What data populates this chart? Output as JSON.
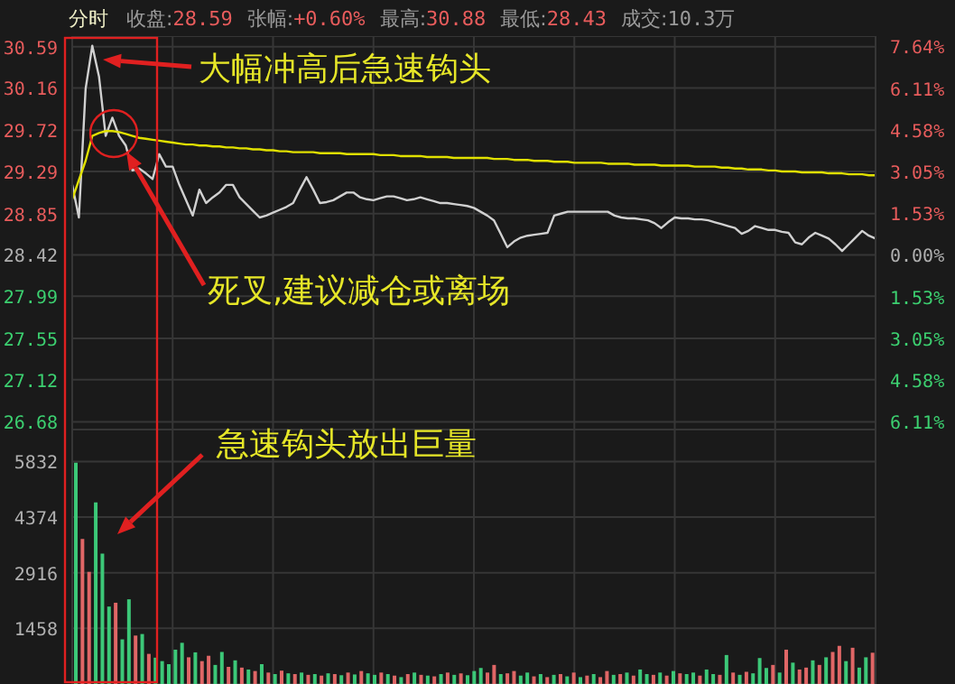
{
  "chart_data": [
    {
      "type": "line",
      "title": "分时",
      "annotations": [
        "收盘:28.59",
        "张幅:+0.60%",
        "最高:30.88",
        "最低:28.43",
        "成交:10.3万",
        "大幅冲高后急速钩头",
        "死叉,建议减仓或离场"
      ],
      "categories": [
        null,
        null,
        null,
        null,
        null,
        null,
        null,
        null,
        null,
        null,
        null,
        null,
        null,
        null,
        null,
        null,
        null,
        null,
        null,
        null,
        null,
        null,
        null,
        null,
        null,
        null,
        null,
        null,
        null,
        null,
        null,
        null,
        null,
        null,
        null,
        null,
        null,
        null,
        null,
        null,
        null,
        null,
        null,
        null,
        null,
        null,
        null,
        null,
        null,
        null,
        null,
        null,
        null,
        null,
        null,
        null,
        null,
        null,
        null,
        null,
        null,
        null,
        null,
        null,
        null,
        null,
        null,
        null,
        null,
        null,
        null,
        null,
        null,
        null,
        null,
        null,
        null,
        null,
        null,
        null,
        null,
        null,
        null,
        null,
        null,
        null,
        null,
        null,
        null,
        null,
        null,
        null,
        null,
        null,
        null,
        null,
        null,
        null,
        null,
        null,
        null,
        null,
        null,
        null,
        null,
        null,
        null,
        null,
        null,
        null,
        null,
        null,
        null,
        null,
        null,
        null,
        null,
        null,
        null,
        null,
        null
      ],
      "series": [
        {
          "color": "#d0d0d0",
          "values": [
            29.15,
            28.81,
            30.15,
            30.6,
            30.28,
            29.66,
            29.85,
            29.66,
            29.56,
            29.3,
            29.32,
            29.27,
            29.21,
            29.47,
            29.34,
            29.34,
            29.15,
            28.99,
            28.83,
            29.1,
            28.96,
            29.02,
            29.07,
            29.15,
            29.15,
            29.02,
            28.95,
            28.88,
            28.81,
            28.83,
            28.86,
            28.89,
            28.92,
            28.96,
            29.1,
            29.23,
            29.1,
            28.96,
            28.97,
            28.99,
            29.03,
            29.07,
            29.07,
            29.02,
            29.0,
            28.99,
            29.01,
            29.03,
            29.03,
            29.01,
            28.99,
            29.0,
            29.02,
            29.0,
            28.98,
            28.96,
            28.96,
            28.95,
            28.94,
            28.93,
            28.91,
            28.87,
            28.83,
            28.78,
            28.64,
            28.5,
            28.56,
            28.6,
            28.62,
            28.63,
            28.64,
            28.65,
            28.83,
            28.85,
            28.87,
            28.87,
            28.87,
            28.87,
            28.87,
            28.87,
            28.87,
            28.83,
            28.81,
            28.8,
            28.8,
            28.79,
            28.78,
            28.75,
            28.7,
            28.76,
            28.81,
            28.8,
            28.8,
            28.79,
            28.79,
            28.78,
            28.76,
            28.74,
            28.72,
            28.7,
            28.64,
            28.67,
            28.72,
            28.7,
            28.68,
            28.68,
            28.66,
            28.65,
            28.55,
            28.53,
            28.6,
            28.65,
            28.62,
            28.59,
            28.53,
            28.46,
            28.53,
            28.6,
            28.67,
            28.62,
            28.59
          ]
        },
        {
          "color": "#e0e000",
          "values": [
            29.0,
            29.2,
            29.4,
            29.66,
            29.69,
            29.71,
            29.71,
            29.7,
            29.68,
            29.66,
            29.64,
            29.63,
            29.62,
            29.61,
            29.6,
            29.59,
            29.58,
            29.57,
            29.57,
            29.56,
            29.56,
            29.55,
            29.55,
            29.54,
            29.54,
            29.53,
            29.53,
            29.52,
            29.52,
            29.51,
            29.51,
            29.5,
            29.5,
            29.49,
            29.49,
            29.49,
            29.49,
            29.48,
            29.48,
            29.48,
            29.48,
            29.47,
            29.47,
            29.47,
            29.47,
            29.47,
            29.46,
            29.46,
            29.46,
            29.45,
            29.45,
            29.45,
            29.45,
            29.44,
            29.44,
            29.44,
            29.44,
            29.43,
            29.43,
            29.43,
            29.43,
            29.43,
            29.43,
            29.42,
            29.42,
            29.42,
            29.41,
            29.41,
            29.41,
            29.4,
            29.4,
            29.4,
            29.39,
            29.39,
            29.39,
            29.38,
            29.38,
            29.38,
            29.38,
            29.38,
            29.37,
            29.37,
            29.37,
            29.37,
            29.36,
            29.36,
            29.36,
            29.36,
            29.35,
            29.35,
            29.35,
            29.35,
            29.35,
            29.34,
            29.34,
            29.34,
            29.34,
            29.33,
            29.33,
            29.32,
            29.32,
            29.31,
            29.31,
            29.31,
            29.3,
            29.3,
            29.29,
            29.29,
            29.29,
            29.28,
            29.28,
            29.28,
            29.28,
            29.27,
            29.27,
            29.27,
            29.26,
            29.26,
            29.26,
            29.25,
            29.25
          ]
        }
      ],
      "ylim": [
        26.6,
        30.7
      ],
      "yticks": [
        26.68,
        27.12,
        27.55,
        27.99,
        28.42,
        28.85,
        29.29,
        29.72,
        30.16,
        30.59
      ],
      "y2lim": [
        -6.4,
        8.02
      ],
      "y2ticks": [
        {
          "value": -6.11,
          "label": "6.11%"
        },
        {
          "value": -4.58,
          "label": "4.58%"
        },
        {
          "value": -3.05,
          "label": "3.05%"
        },
        {
          "value": -1.53,
          "label": "1.53%"
        },
        {
          "value": 0,
          "label": "0.00%"
        },
        {
          "value": 1.53,
          "label": "1.53%"
        },
        {
          "value": 3.05,
          "label": "3.05%"
        },
        {
          "value": 4.58,
          "label": "4.58%"
        },
        {
          "value": 6.11,
          "label": "6.11%"
        },
        {
          "value": 7.64,
          "label": "7.64%"
        }
      ],
      "grid": true
    },
    {
      "type": "bar",
      "annotations": [
        "急速钩头放出巨量"
      ],
      "categories": [
        null,
        null,
        null,
        null,
        null,
        null,
        null,
        null,
        null,
        null,
        null,
        null,
        null,
        null,
        null,
        null,
        null,
        null,
        null,
        null,
        null,
        null,
        null,
        null,
        null,
        null,
        null,
        null,
        null,
        null,
        null,
        null,
        null,
        null,
        null,
        null,
        null,
        null,
        null,
        null,
        null,
        null,
        null,
        null,
        null,
        null,
        null,
        null,
        null,
        null,
        null,
        null,
        null,
        null,
        null,
        null,
        null,
        null,
        null,
        null,
        null,
        null,
        null,
        null,
        null,
        null,
        null,
        null,
        null,
        null,
        null,
        null,
        null,
        null,
        null,
        null,
        null,
        null,
        null,
        null,
        null,
        null,
        null,
        null,
        null,
        null,
        null,
        null,
        null,
        null,
        null,
        null,
        null,
        null,
        null,
        null,
        null,
        null,
        null,
        null,
        null,
        null,
        null,
        null,
        null,
        null,
        null,
        null,
        null,
        null,
        null,
        null,
        null,
        null,
        null,
        null,
        null,
        null,
        null,
        null,
        null
      ],
      "values": [
        5800,
        3800,
        2940,
        4760,
        3420,
        2030,
        2130,
        1170,
        2220,
        1270,
        1310,
        790,
        690,
        600,
        520,
        900,
        1080,
        700,
        830,
        600,
        740,
        500,
        840,
        450,
        620,
        430,
        380,
        340,
        520,
        300,
        260,
        350,
        280,
        260,
        300,
        240,
        260,
        220,
        280,
        260,
        230,
        300,
        250,
        340,
        280,
        240,
        300,
        260,
        220,
        180,
        260,
        300,
        240,
        220,
        200,
        260,
        300,
        240,
        280,
        230,
        340,
        420,
        300,
        500,
        260,
        280,
        340,
        220,
        300,
        200,
        260,
        180,
        240,
        260,
        200,
        300,
        180,
        220,
        260,
        180,
        340,
        240,
        260,
        300,
        220,
        380,
        260,
        240,
        300,
        220,
        340,
        280,
        260,
        300,
        220,
        380,
        260,
        240,
        760,
        300,
        240,
        320,
        280,
        680,
        420,
        500,
        300,
        900,
        560,
        380,
        430,
        620,
        500,
        700,
        840,
        1000,
        600,
        950,
        430,
        700,
        820
      ],
      "colors": [
        "#3cc878",
        "#e06666",
        "#e06666",
        "#3cc878",
        "#3cc878",
        "#3cc878",
        "#e06666",
        "#3cc878",
        "#3cc878",
        "#e06666",
        "#3cc878",
        "#e06666",
        "#3cc878",
        "#3cc878",
        "#3cc878",
        "#3cc878",
        "#3cc878",
        "#e06666",
        "#3cc878",
        "#e06666",
        "#e06666",
        "#3cc878",
        "#3cc878",
        "#e06666",
        "#3cc878",
        "#e06666",
        "#3cc878",
        "#e06666",
        "#3cc878",
        "#e06666",
        "#3cc878",
        "#e06666",
        "#3cc878",
        "#e06666",
        "#3cc878",
        "#e06666",
        "#3cc878",
        "#e06666",
        "#3cc878",
        "#e06666",
        "#3cc878",
        "#e06666",
        "#3cc878",
        "#e06666",
        "#3cc878",
        "#3cc878",
        "#e06666",
        "#3cc878",
        "#e06666",
        "#3cc878",
        "#e06666",
        "#3cc878",
        "#e06666",
        "#3cc878",
        "#e06666",
        "#3cc878",
        "#e06666",
        "#3cc878",
        "#e06666",
        "#3cc878",
        "#3cc878",
        "#3cc878",
        "#e06666",
        "#e06666",
        "#3cc878",
        "#e06666",
        "#e06666",
        "#3cc878",
        "#3cc878",
        "#e06666",
        "#3cc878",
        "#e06666",
        "#3cc878",
        "#e06666",
        "#3cc878",
        "#e06666",
        "#3cc878",
        "#e06666",
        "#3cc878",
        "#e06666",
        "#e06666",
        "#3cc878",
        "#e06666",
        "#3cc878",
        "#e06666",
        "#3cc878",
        "#3cc878",
        "#e06666",
        "#3cc878",
        "#e06666",
        "#3cc878",
        "#e06666",
        "#3cc878",
        "#3cc878",
        "#e06666",
        "#3cc878",
        "#3cc878",
        "#e06666",
        "#3cc878",
        "#e06666",
        "#3cc878",
        "#e06666",
        "#3cc878",
        "#3cc878",
        "#3cc878",
        "#e06666",
        "#3cc878",
        "#e06666",
        "#3cc878",
        "#e06666",
        "#e06666",
        "#3cc878",
        "#e06666",
        "#3cc878",
        "#e06666",
        "#e06666",
        "#3cc878",
        "#e06666",
        "#3cc878",
        "#3cc878",
        "#e06666"
      ],
      "ylim": [
        0,
        6670
      ],
      "yticks": [
        1458,
        2916,
        4374,
        5832
      ],
      "grid": true
    }
  ]
}
